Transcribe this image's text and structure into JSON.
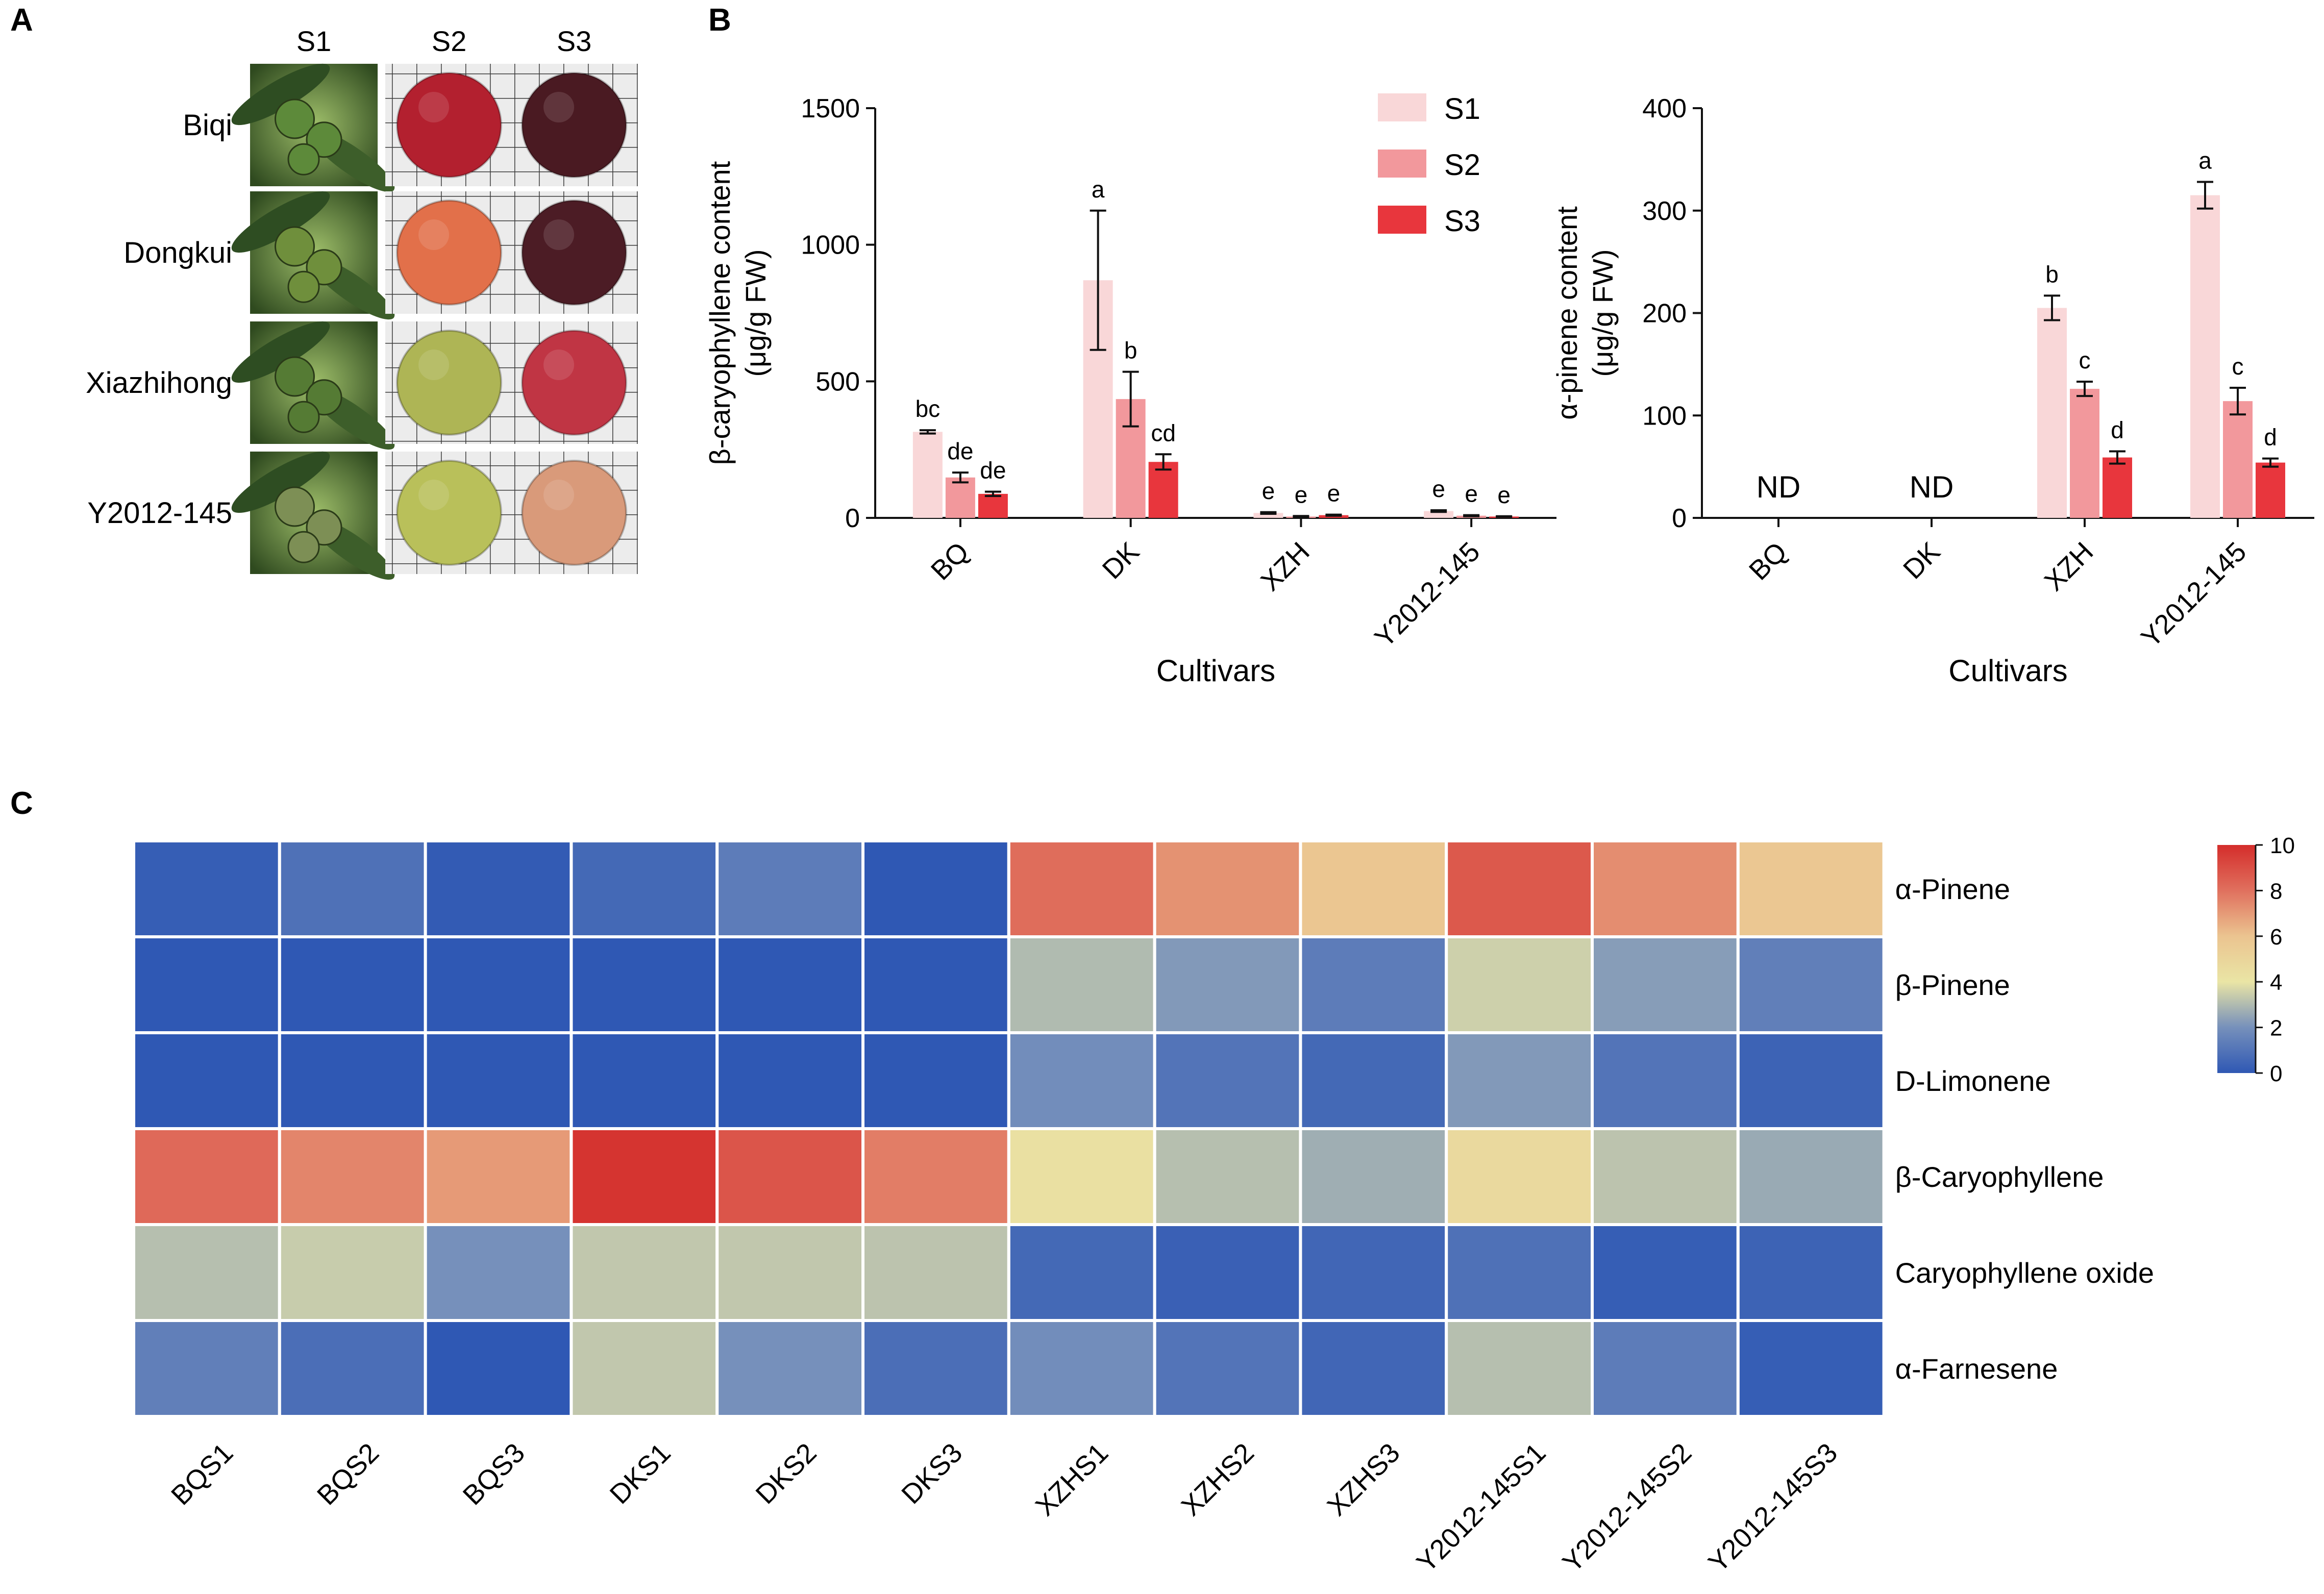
{
  "colors": {
    "s1": "#f9d7d8",
    "s2": "#f2989c",
    "s3": "#e8363d",
    "axis": "#111111",
    "cell_border": "#ffffff"
  },
  "panels": {
    "a": "A",
    "b": "B",
    "c": "C"
  },
  "photo_panel": {
    "stages": [
      "S1",
      "S2",
      "S3"
    ],
    "cultivars": [
      {
        "name": "Biqi",
        "colors": [
          "#5d8a3a",
          "#b3202f",
          "#4a1a22"
        ]
      },
      {
        "name": "Dongkui",
        "colors": [
          "#6f8f3c",
          "#e2704a",
          "#4c1c25"
        ]
      },
      {
        "name": "Xiazhihong",
        "colors": [
          "#557b34",
          "#aeb555",
          "#c03544"
        ]
      },
      {
        "name": "Y2012-145",
        "colors": [
          "#7d8f55",
          "#b9c05a",
          "#d99a7a"
        ]
      }
    ]
  },
  "chart_data": [
    {
      "type": "bar",
      "title": "",
      "xlabel": "Cultivars",
      "ylabel": [
        "β-caryophyllene content",
        "(μg/g FW)"
      ],
      "ylim": [
        0,
        1500
      ],
      "yticks": [
        "0",
        "500",
        "1000",
        "1500"
      ],
      "categories": [
        "BQ",
        "DK",
        "XZH",
        "Y2012-145"
      ],
      "legend": [
        "S1",
        "S2",
        "S3"
      ],
      "series": [
        {
          "name": "S1",
          "values": [
            315,
            870,
            18,
            25
          ],
          "errors": [
            6,
            255,
            3,
            3
          ],
          "labels": [
            "bc",
            "a",
            "e",
            "e"
          ]
        },
        {
          "name": "S2",
          "values": [
            148,
            435,
            5,
            8
          ],
          "errors": [
            18,
            100,
            2,
            2
          ],
          "labels": [
            "de",
            "b",
            "e",
            "e"
          ]
        },
        {
          "name": "S3",
          "values": [
            88,
            205,
            10,
            5
          ],
          "errors": [
            8,
            28,
            2,
            1
          ],
          "labels": [
            "de",
            "cd",
            "e",
            "e"
          ]
        }
      ],
      "annotations": []
    },
    {
      "type": "bar",
      "title": "",
      "xlabel": "Cultivars",
      "ylabel": [
        "α-pinene content",
        "(μg/g FW)"
      ],
      "ylim": [
        0,
        400
      ],
      "yticks": [
        "0",
        "100",
        "200",
        "300",
        "400"
      ],
      "categories": [
        "BQ",
        "DK",
        "XZH",
        "Y2012-145"
      ],
      "series": [
        {
          "name": "S1",
          "values": [
            0,
            0,
            205,
            315
          ],
          "errors": [
            0,
            0,
            12,
            13
          ],
          "labels": [
            "",
            "",
            "b",
            "a"
          ]
        },
        {
          "name": "S2",
          "values": [
            0,
            0,
            126,
            114
          ],
          "errors": [
            0,
            0,
            7,
            13
          ],
          "labels": [
            "",
            "",
            "c",
            "c"
          ]
        },
        {
          "name": "S3",
          "values": [
            0,
            0,
            59,
            54
          ],
          "errors": [
            0,
            0,
            6,
            4
          ],
          "labels": [
            "",
            "",
            "d",
            "d"
          ]
        }
      ],
      "annotations": [
        "ND",
        "ND"
      ]
    },
    {
      "type": "heatmap",
      "columns": [
        "BQS1",
        "BQS2",
        "BQS3",
        "DKS1",
        "DKS2",
        "DKS3",
        "XZHS1",
        "XZHS2",
        "XZHS3",
        "Y2012-145S1",
        "Y2012-145S2",
        "Y2012-145S3"
      ],
      "rows": [
        "α-Pinene",
        "β-Pinene",
        "D-Limonene",
        "β-Caryophyllene",
        "Caryophyllene oxide",
        "α-Farnesene"
      ],
      "values": [
        [
          0.2,
          0.9,
          0.1,
          0.6,
          1.3,
          0.0,
          8.1,
          7.2,
          5.9,
          8.7,
          7.3,
          5.8
        ],
        [
          0.0,
          0.0,
          0.0,
          0.0,
          0.0,
          0.0,
          3.0,
          2.2,
          1.3,
          3.5,
          2.3,
          1.4
        ],
        [
          0.0,
          0.0,
          0.0,
          0.0,
          0.0,
          0.0,
          1.9,
          1.0,
          0.6,
          2.2,
          1.0,
          0.4
        ],
        [
          8.2,
          7.5,
          7.0,
          9.8,
          8.8,
          7.7,
          4.3,
          3.1,
          2.7,
          4.7,
          3.2,
          2.6
        ],
        [
          3.1,
          3.4,
          2.0,
          3.3,
          3.3,
          3.2,
          0.6,
          0.3,
          0.5,
          0.9,
          0.2,
          0.4
        ],
        [
          1.4,
          0.8,
          0.0,
          3.3,
          2.0,
          0.8,
          1.9,
          1.0,
          0.5,
          3.1,
          1.3,
          0.2
        ]
      ],
      "scale": {
        "min": 0,
        "max": 10,
        "ticks": [
          "0",
          "2",
          "4",
          "6",
          "8",
          "10"
        ]
      }
    }
  ]
}
